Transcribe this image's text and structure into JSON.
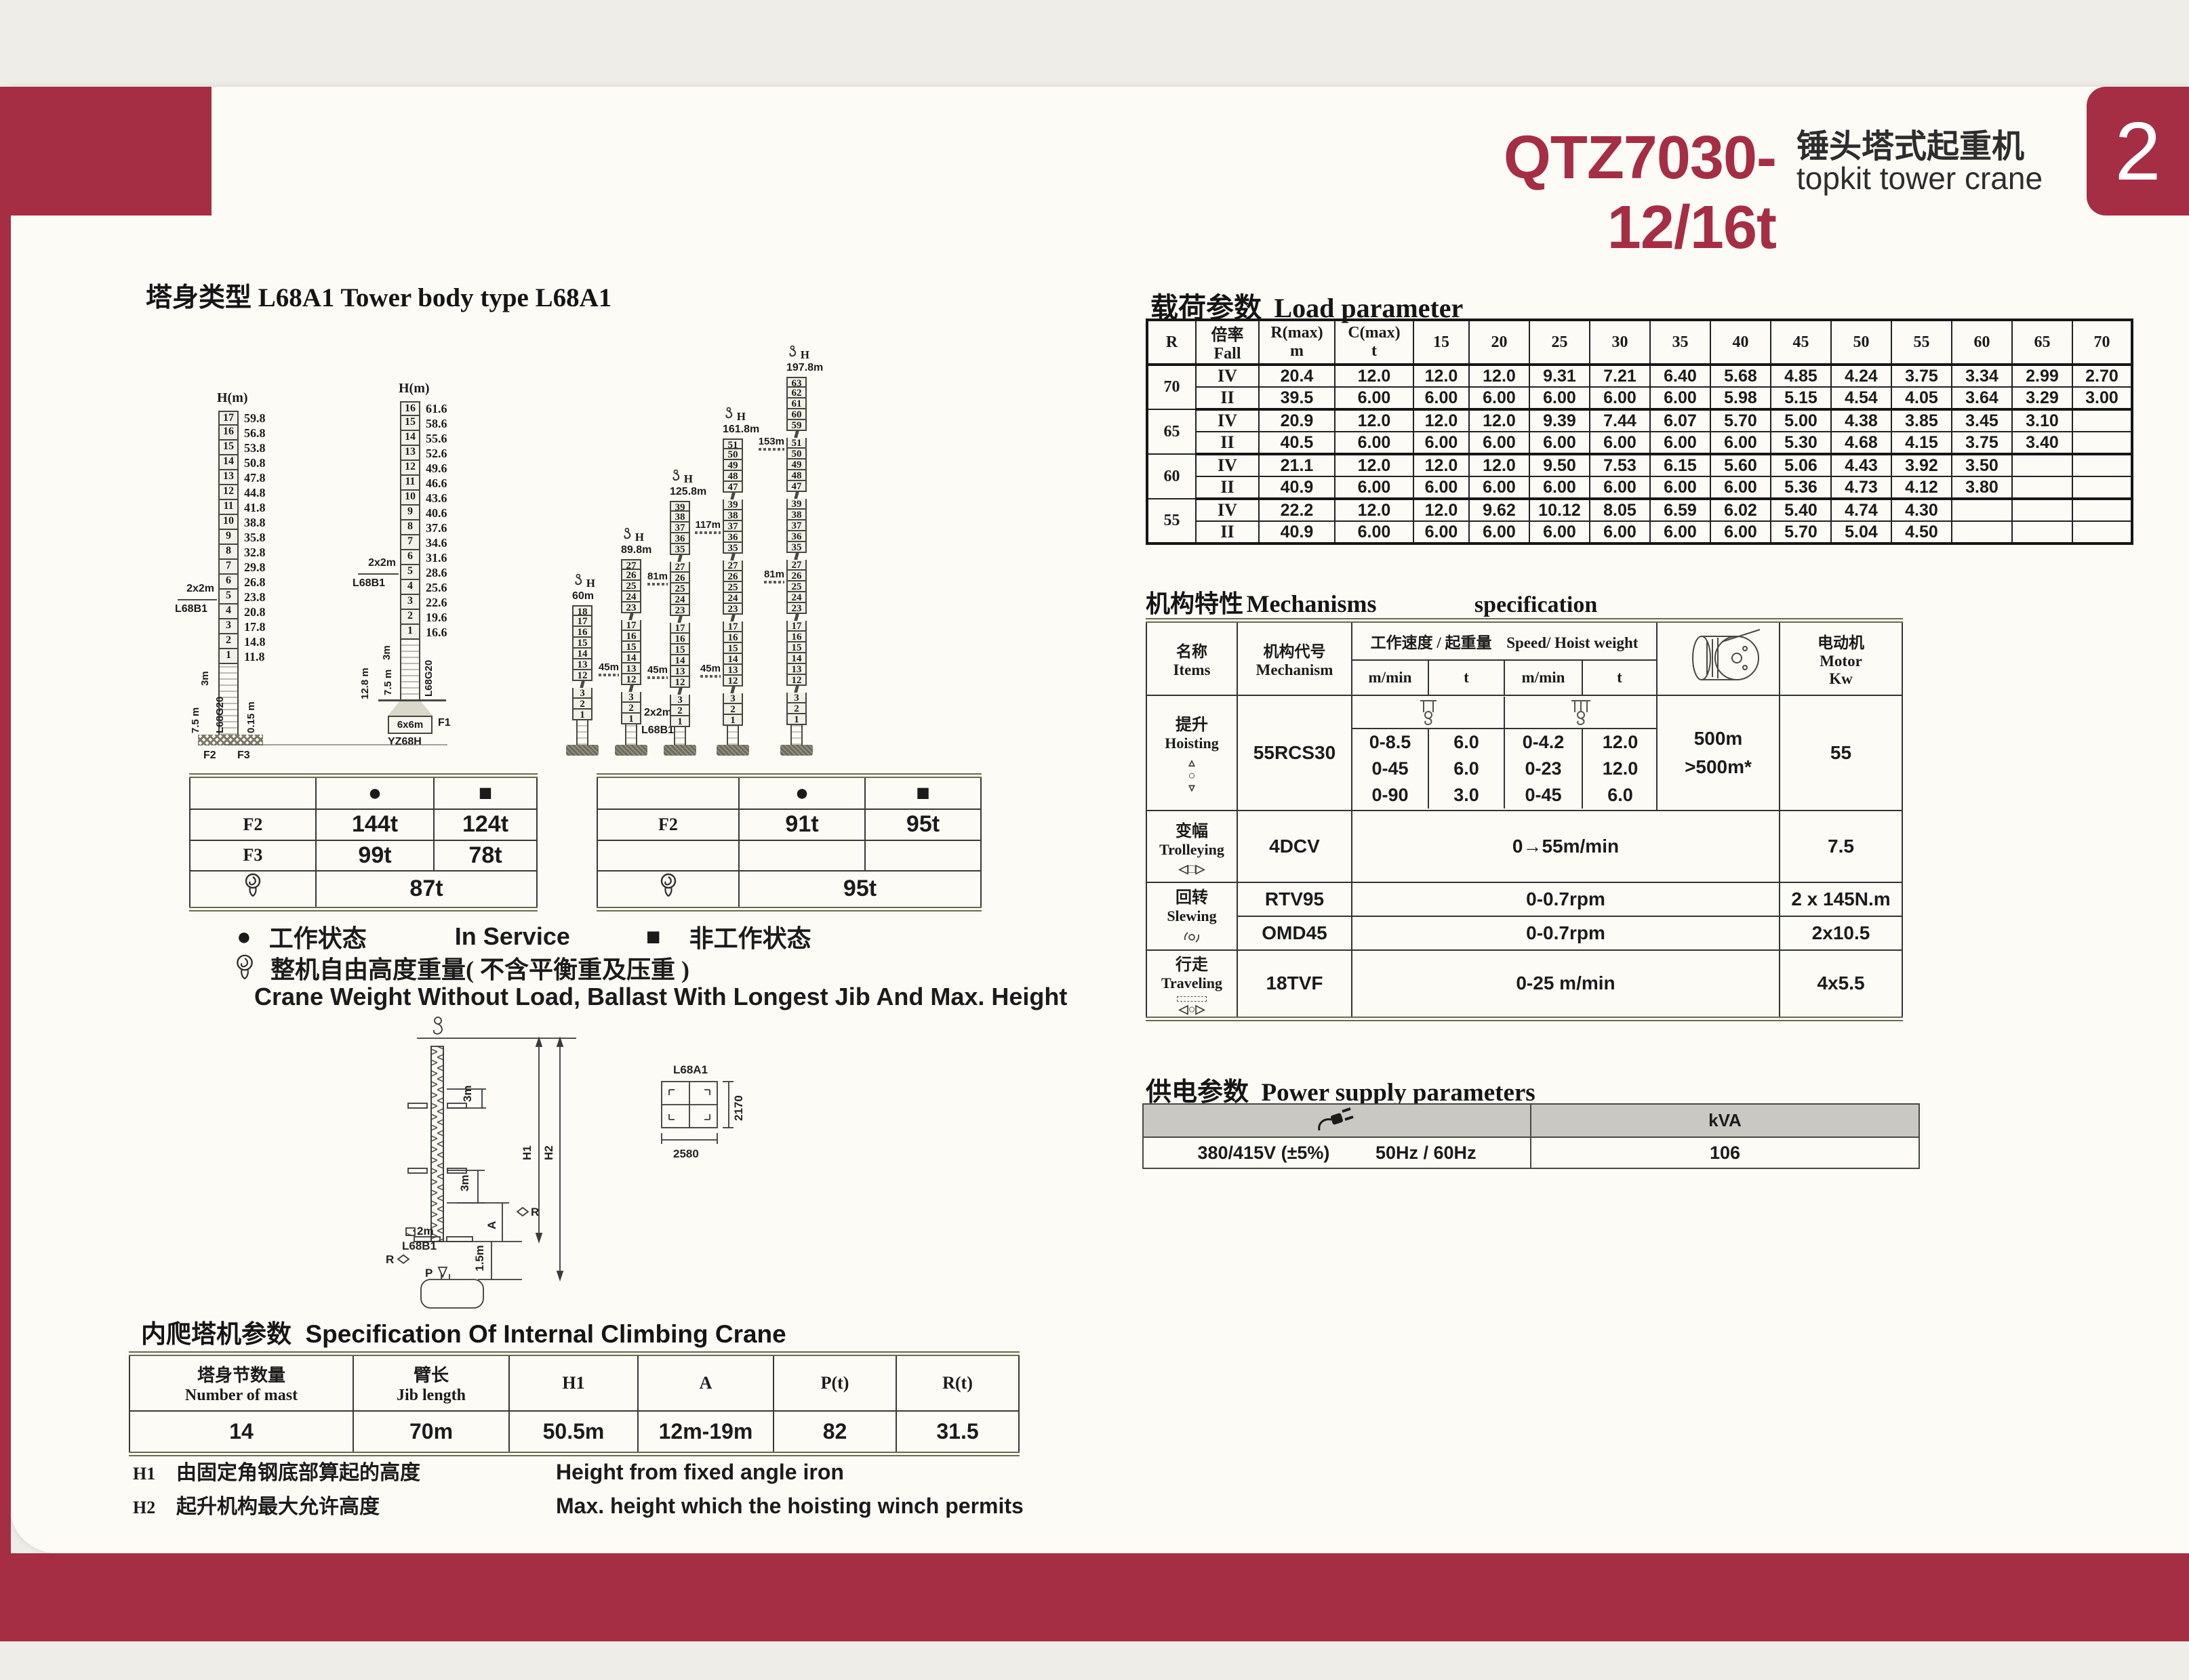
{
  "page": {
    "background": "#efede8",
    "accent_red": "#a52e44",
    "tab_number": "2"
  },
  "header": {
    "model": "QTZ7030-12/16t",
    "title_cn": "锤头塔式起重机",
    "title_en": "topkit tower crane"
  },
  "tower_body": {
    "title": "塔身类型 L68A1 Tower body   type L68A1",
    "h_label": "H",
    "hm_label": "H(m)",
    "fixed_towers": [
      {
        "sections": [
          [
            "17",
            "59.8"
          ],
          [
            "16",
            "56.8"
          ],
          [
            "15",
            "53.8"
          ],
          [
            "14",
            "50.8"
          ],
          [
            "13",
            "47.8"
          ],
          [
            "12",
            "44.8"
          ],
          [
            "11",
            "41.8"
          ],
          [
            "10",
            "38.8"
          ],
          [
            "9",
            "35.8"
          ],
          [
            "8",
            "32.8"
          ],
          [
            "7",
            "29.8"
          ],
          [
            "6",
            "26.8"
          ],
          [
            "5",
            "23.8"
          ],
          [
            "4",
            "20.8"
          ],
          [
            "3",
            "17.8"
          ],
          [
            "2",
            "14.8"
          ],
          [
            "1",
            "11.8"
          ]
        ],
        "labels": {
          "tie": "2x2m",
          "tie_type": "L68B1",
          "seg": "3m",
          "lower": "7.5 m",
          "mast_type": "L68G20",
          "offset": "0.15 m",
          "f_left": "F2",
          "f_right": "F3"
        }
      },
      {
        "sections": [
          [
            "16",
            "61.6"
          ],
          [
            "15",
            "58.6"
          ],
          [
            "14",
            "55.6"
          ],
          [
            "13",
            "52.6"
          ],
          [
            "12",
            "49.6"
          ],
          [
            "11",
            "46.6"
          ],
          [
            "10",
            "43.6"
          ],
          [
            "9",
            "40.6"
          ],
          [
            "8",
            "37.6"
          ],
          [
            "7",
            "34.6"
          ],
          [
            "6",
            "31.6"
          ],
          [
            "5",
            "28.6"
          ],
          [
            "4",
            "25.6"
          ],
          [
            "3",
            "22.6"
          ],
          [
            "2",
            "19.6"
          ],
          [
            "1",
            "16.6"
          ]
        ],
        "labels": {
          "tie": "2x2m",
          "tie_type": "L68B1",
          "seg": "3m",
          "depth": "12.8 m",
          "lower": "7.5 m",
          "mast_type": "L68G20",
          "base_size": "6x6m",
          "base_type": "YZ68H",
          "f": "F1"
        }
      }
    ],
    "anchored_towers": [
      {
        "height": "60m",
        "runs": [
          [
            18,
            17,
            16,
            15,
            14,
            13,
            12
          ],
          [
            3,
            2,
            1
          ]
        ],
        "ties": {}
      },
      {
        "height": "89.8m",
        "runs": [
          [
            27,
            26,
            25,
            24,
            23
          ],
          [
            17,
            16,
            15,
            14,
            13,
            12
          ],
          [
            3,
            2,
            1
          ]
        ],
        "ties": {
          "13": "45m"
        },
        "base_labels": [
          "2x2m",
          "L68B1"
        ]
      },
      {
        "height": "125.8m",
        "runs": [
          [
            39,
            38,
            37,
            36,
            35
          ],
          [
            27,
            26,
            25,
            24,
            23
          ],
          [
            17,
            16,
            15,
            14,
            13,
            12
          ],
          [
            3,
            2,
            1
          ]
        ],
        "ties": {
          "26": "81m",
          "13": "45m"
        }
      },
      {
        "height": "161.8m",
        "runs": [
          [
            51,
            50,
            49,
            48,
            47
          ],
          [
            39,
            38,
            37,
            36,
            35
          ],
          [
            27,
            26,
            25,
            24,
            23
          ],
          [
            17,
            16,
            15,
            14,
            13,
            12
          ],
          [
            3,
            2,
            1
          ]
        ],
        "ties": {
          "37": "117m",
          "13": "45m"
        }
      },
      {
        "height": "197.8m",
        "runs": [
          [
            63,
            62,
            61,
            60,
            59
          ],
          [
            51,
            50,
            49,
            48,
            47
          ],
          [
            39,
            38,
            37,
            36,
            35
          ],
          [
            27,
            26,
            25,
            24,
            23
          ],
          [
            17,
            16,
            15,
            14,
            13,
            12
          ],
          [
            3,
            2,
            1
          ]
        ],
        "ties": {
          "51": "153m",
          "26": "81m"
        }
      }
    ]
  },
  "weights": {
    "in_symbol": "●",
    "out_symbol": "■",
    "left": {
      "rows": [
        [
          "F2",
          "144t",
          "124t"
        ],
        [
          "F3",
          "99t",
          "78t"
        ]
      ],
      "free_weight": "87t"
    },
    "right": {
      "f2": [
        "F2",
        "91t",
        "95t"
      ],
      "free_weight": "95t"
    }
  },
  "legend": {
    "in_cn": "工作状态",
    "in_en": "In Service",
    "out_cn": "非工作状态",
    "free_cn": "整机自由高度重量( 不含平衡重及压重 )",
    "free_en": "Crane Weight Without Load, Ballast With Longest Jib  And Max. Height"
  },
  "climb": {
    "title_cn": "内爬塔机参数",
    "title_en": "Specification Of Internal Climbing Crane",
    "diagram": {
      "h1": "H1",
      "h2": "H2",
      "seg_upper": "3m",
      "seg_lower": "3m",
      "a": "A",
      "r": "R",
      "p": "P",
      "tie": "2m",
      "tie_type": "L68B1",
      "base_offset": "1.5m",
      "section_label": "L68A1",
      "section_width": "2580",
      "section_depth": "2170"
    },
    "table": {
      "headers": [
        {
          "cn": "塔身节数量",
          "en": "Number   of mast"
        },
        {
          "cn": "臂长",
          "en": "Jib length"
        },
        {
          "en": "H1"
        },
        {
          "en": "A"
        },
        {
          "en": "P(t)"
        },
        {
          "en": "R(t)"
        }
      ],
      "values": [
        "14",
        "70m",
        "50.5m",
        "12m-19m",
        "82",
        "31.5"
      ]
    },
    "notes": [
      {
        "key": "H1",
        "cn": "由固定角钢底部算起的高度",
        "en": "Height from fixed angle iron"
      },
      {
        "key": "H2",
        "cn": "起升机构最大允许高度",
        "en": "Max. height which the hoisting winch permits"
      }
    ]
  },
  "load_table": {
    "title_cn": "载荷参数",
    "title_en": "Load parameter",
    "r_header": "R",
    "fall_cn": "倍率",
    "fall_en": "Fall",
    "rmax": "R(max)",
    "rmax_unit": "m",
    "cmax": "C(max)",
    "cmax_unit": "t",
    "radius_columns": [
      "15",
      "20",
      "25",
      "30",
      "35",
      "40",
      "45",
      "50",
      "55",
      "60",
      "65",
      "70"
    ],
    "groups": [
      {
        "radius": "70",
        "rows": [
          {
            "fall": "IV",
            "values": [
              "20.4",
              "12.0",
              "12.0",
              "12.0",
              "9.31",
              "7.21",
              "6.40",
              "5.68",
              "4.85",
              "4.24",
              "3.75",
              "3.34",
              "2.99",
              "2.70"
            ]
          },
          {
            "fall": "II",
            "values": [
              "39.5",
              "6.00",
              "6.00",
              "6.00",
              "6.00",
              "6.00",
              "6.00",
              "5.98",
              "5.15",
              "4.54",
              "4.05",
              "3.64",
              "3.29",
              "3.00"
            ]
          }
        ]
      },
      {
        "radius": "65",
        "rows": [
          {
            "fall": "IV",
            "values": [
              "20.9",
              "12.0",
              "12.0",
              "12.0",
              "9.39",
              "7.44",
              "6.07",
              "5.70",
              "5.00",
              "4.38",
              "3.85",
              "3.45",
              "3.10",
              ""
            ]
          },
          {
            "fall": "II",
            "values": [
              "40.5",
              "6.00",
              "6.00",
              "6.00",
              "6.00",
              "6.00",
              "6.00",
              "6.00",
              "5.30",
              "4.68",
              "4.15",
              "3.75",
              "3.40",
              ""
            ]
          }
        ]
      },
      {
        "radius": "60",
        "rows": [
          {
            "fall": "IV",
            "values": [
              "21.1",
              "12.0",
              "12.0",
              "12.0",
              "9.50",
              "7.53",
              "6.15",
              "5.60",
              "5.06",
              "4.43",
              "3.92",
              "3.50",
              "",
              ""
            ]
          },
          {
            "fall": "II",
            "values": [
              "40.9",
              "6.00",
              "6.00",
              "6.00",
              "6.00",
              "6.00",
              "6.00",
              "6.00",
              "5.36",
              "4.73",
              "4.12",
              "3.80",
              "",
              ""
            ]
          }
        ]
      },
      {
        "radius": "55",
        "rows": [
          {
            "fall": "IV",
            "values": [
              "22.2",
              "12.0",
              "12.0",
              "9.62",
              "10.12",
              "8.05",
              "6.59",
              "6.02",
              "5.40",
              "4.74",
              "4.30",
              "",
              "",
              ""
            ]
          },
          {
            "fall": "II",
            "values": [
              "40.9",
              "6.00",
              "6.00",
              "6.00",
              "6.00",
              "6.00",
              "6.00",
              "6.00",
              "5.70",
              "5.04",
              "4.50",
              "",
              "",
              ""
            ]
          }
        ]
      }
    ]
  },
  "mech_table": {
    "title_cn": "机构特性",
    "title_mid": "Mechanisms",
    "title_en": "specification",
    "items_cn": "名称",
    "items_en": "Items",
    "mech_cn": "机构代号",
    "mech_en": "Mechanism",
    "speed_cn": "工作速度 / 起重量",
    "speed_en": "Speed/ Hoist weight",
    "sub_headers": [
      "m/min",
      "t",
      "m/min",
      "t"
    ],
    "motor_cn": "电动机",
    "motor_en": "Motor",
    "motor_unit": "Kw",
    "hoisting": {
      "cn": "提升",
      "en": "Hoisting",
      "mech": "55RCS30",
      "speeds": [
        [
          "0-8.5",
          "6.0",
          "0-4.2",
          "12.0"
        ],
        [
          "0-45",
          "6.0",
          "0-23",
          "12.0"
        ],
        [
          "0-90",
          "3.0",
          "0-45",
          "6.0"
        ]
      ],
      "rope_line1": "500m",
      "rope_line2": ">500m*",
      "motor": "55"
    },
    "trolleying": {
      "cn": "变幅",
      "en": "Trolleying",
      "mech": "4DCV",
      "speed": "0→55m/min",
      "motor": "7.5"
    },
    "slewing": {
      "cn": "回转",
      "en": "Slewing",
      "rows": [
        {
          "mech": "RTV95",
          "speed": "0-0.7rpm",
          "motor": "2 x 145N.m"
        },
        {
          "mech": "OMD45",
          "speed": "0-0.7rpm",
          "motor": "2x10.5"
        }
      ]
    },
    "traveling": {
      "cn": "行走",
      "en": "Traveling",
      "mech": "18TVF",
      "speed": "0-25 m/min",
      "motor": "4x5.5"
    }
  },
  "power_table": {
    "title_cn": "供电参数",
    "title_en": "Power supply parameters",
    "kva_header": "kVA",
    "voltage": "380/415V (±5%)",
    "frequency": "50Hz / 60Hz",
    "kva_value": "106"
  },
  "icons": {
    "up": "▵",
    "circle": "○",
    "down": "▿",
    "left": "◁",
    "box": "□",
    "right": "▷"
  }
}
